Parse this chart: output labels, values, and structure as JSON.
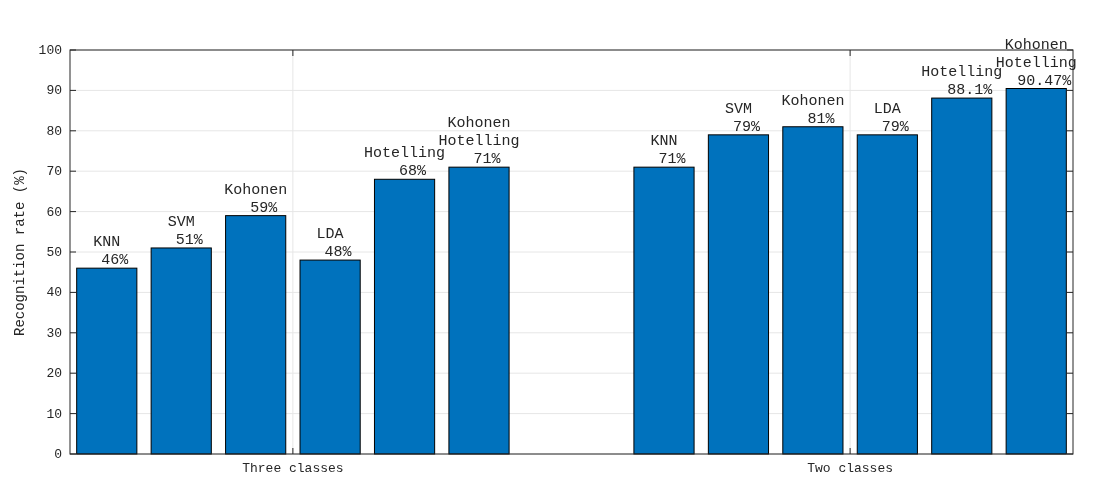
{
  "chart_data": {
    "type": "bar",
    "ylabel": "Recognition rate (%)",
    "categories": [
      "Three classes",
      "Two classes"
    ],
    "series": [
      {
        "name": "KNN",
        "color": "#0072bd",
        "values": [
          46,
          71
        ],
        "value_labels": [
          "46%",
          "71%"
        ]
      },
      {
        "name": "SVM",
        "color": "#0072bd",
        "values": [
          51,
          79
        ],
        "value_labels": [
          "51%",
          "79%"
        ]
      },
      {
        "name": "Kohonen",
        "color": "#0072bd",
        "values": [
          59,
          81
        ],
        "value_labels": [
          "59%",
          "81%"
        ]
      },
      {
        "name": "LDA",
        "color": "#0072bd",
        "values": [
          48,
          79
        ],
        "value_labels": [
          "48%",
          "79%"
        ]
      },
      {
        "name": "Hotelling",
        "color": "#0072bd",
        "values": [
          68,
          88.1
        ],
        "value_labels": [
          "68%",
          "88.1%"
        ]
      },
      {
        "name": "Kohonen Hotelling",
        "color": "#0072bd",
        "values": [
          71,
          90.47
        ],
        "value_labels": [
          "71%",
          "90.47%"
        ]
      }
    ],
    "ylim": [
      0,
      100
    ],
    "yticks": [
      0,
      10,
      20,
      30,
      40,
      50,
      60,
      70,
      80,
      90,
      100
    ],
    "grid": true
  }
}
